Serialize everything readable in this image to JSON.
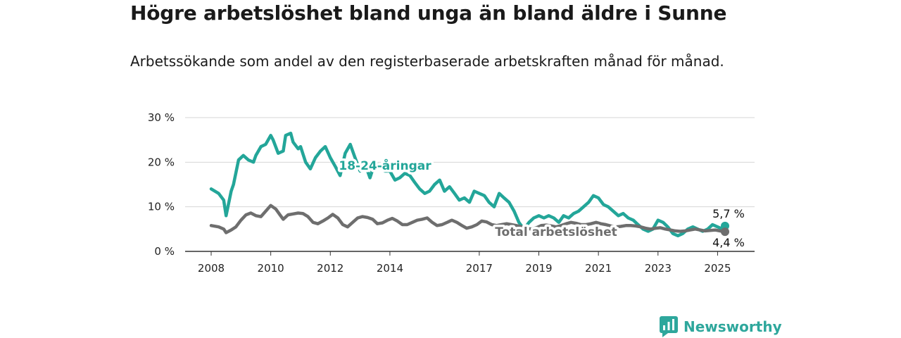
{
  "title": "Högre arbetslöshet bland unga än bland äldre i Sunne",
  "subtitle": "Arbetssökande som andel av den registerbaserade arbetskraften månad för månad.",
  "brand": {
    "name": "Newsworthy",
    "icon": "newsworthy-logo-icon",
    "color": "#2ea79c"
  },
  "chart_data": {
    "type": "line",
    "ylim": [
      0,
      30
    ],
    "xlim": [
      2008.0,
      2025.75
    ],
    "y_ticks": [
      {
        "value": 0,
        "label": "0 %"
      },
      {
        "value": 10,
        "label": "10 %"
      },
      {
        "value": 20,
        "label": "20 %"
      },
      {
        "value": 30,
        "label": "30 %"
      }
    ],
    "x_ticks": [
      {
        "value": 2008,
        "label": "2008"
      },
      {
        "value": 2010,
        "label": "2010"
      },
      {
        "value": 2012,
        "label": "2012"
      },
      {
        "value": 2014,
        "label": "2014"
      },
      {
        "value": 2017,
        "label": "2017"
      },
      {
        "value": 2019,
        "label": "2019"
      },
      {
        "value": 2021,
        "label": "2021"
      },
      {
        "value": 2023,
        "label": "2023"
      },
      {
        "value": 2025,
        "label": "2025"
      }
    ],
    "grid": "horizontal",
    "series": [
      {
        "name": "18-24-åringar",
        "color": "#23a699",
        "end_label": "5,7 %",
        "x": [
          2008.0,
          2008.25,
          2008.42,
          2008.5,
          2008.67,
          2008.75,
          2008.92,
          2009.08,
          2009.25,
          2009.42,
          2009.5,
          2009.67,
          2009.83,
          2010.0,
          2010.08,
          2010.25,
          2010.42,
          2010.5,
          2010.67,
          2010.75,
          2010.92,
          2011.0,
          2011.17,
          2011.33,
          2011.5,
          2011.67,
          2011.83,
          2012.0,
          2012.17,
          2012.33,
          2012.5,
          2012.67,
          2012.83,
          2013.0,
          2013.17,
          2013.33,
          2013.5,
          2013.67,
          2013.83,
          2014.0,
          2014.17,
          2014.33,
          2014.5,
          2014.67,
          2014.83,
          2015.0,
          2015.17,
          2015.33,
          2015.5,
          2015.67,
          2015.83,
          2016.0,
          2016.17,
          2016.33,
          2016.5,
          2016.67,
          2016.83,
          2017.0,
          2017.17,
          2017.33,
          2017.5,
          2017.67,
          2017.83,
          2018.0,
          2018.17,
          2018.33,
          2018.5,
          2018.67,
          2018.83,
          2019.0,
          2019.17,
          2019.33,
          2019.5,
          2019.67,
          2019.83,
          2020.0,
          2020.17,
          2020.33,
          2020.5,
          2020.67,
          2020.83,
          2021.0,
          2021.17,
          2021.33,
          2021.5,
          2021.67,
          2021.83,
          2022.0,
          2022.17,
          2022.33,
          2022.5,
          2022.67,
          2022.83,
          2023.0,
          2023.17,
          2023.33,
          2023.5,
          2023.67,
          2023.83,
          2024.0,
          2024.17,
          2024.33,
          2024.5,
          2024.67,
          2024.83,
          2025.0,
          2025.17,
          2025.25
        ],
        "y": [
          14.0,
          13.0,
          11.5,
          8.0,
          13.5,
          15.0,
          20.5,
          21.5,
          20.5,
          20.0,
          21.5,
          23.5,
          24.0,
          26.0,
          25.0,
          22.0,
          22.5,
          26.0,
          26.5,
          24.5,
          23.0,
          23.5,
          20.0,
          18.5,
          21.0,
          22.5,
          23.5,
          21.0,
          19.0,
          17.0,
          22.0,
          24.0,
          21.0,
          18.0,
          19.5,
          16.5,
          20.0,
          19.0,
          18.0,
          18.0,
          16.0,
          16.5,
          17.5,
          17.0,
          15.5,
          14.0,
          13.0,
          13.5,
          15.0,
          16.0,
          13.5,
          14.5,
          13.0,
          11.5,
          12.0,
          11.0,
          13.5,
          13.0,
          12.5,
          11.0,
          10.0,
          13.0,
          12.0,
          11.0,
          9.0,
          6.5,
          5.0,
          6.5,
          7.5,
          8.0,
          7.5,
          8.0,
          7.5,
          6.5,
          8.0,
          7.5,
          8.5,
          9.0,
          10.0,
          11.0,
          12.5,
          12.0,
          10.5,
          10.0,
          9.0,
          8.0,
          8.5,
          7.5,
          7.0,
          6.0,
          5.0,
          4.5,
          5.0,
          7.0,
          6.5,
          5.5,
          4.0,
          3.5,
          4.0,
          5.0,
          5.5,
          5.0,
          4.5,
          5.0,
          6.0,
          5.5,
          5.0,
          5.7
        ]
      },
      {
        "name": "Total arbetslöshet",
        "color": "#6e6e6e",
        "end_label": "4,4 %",
        "x": [
          2008.0,
          2008.25,
          2008.42,
          2008.5,
          2008.67,
          2008.83,
          2009.0,
          2009.17,
          2009.33,
          2009.5,
          2009.67,
          2009.83,
          2010.0,
          2010.17,
          2010.33,
          2010.42,
          2010.58,
          2010.75,
          2010.92,
          2011.08,
          2011.25,
          2011.42,
          2011.58,
          2011.75,
          2011.92,
          2012.08,
          2012.25,
          2012.42,
          2012.58,
          2012.75,
          2012.92,
          2013.08,
          2013.25,
          2013.42,
          2013.58,
          2013.75,
          2013.92,
          2014.08,
          2014.25,
          2014.42,
          2014.58,
          2014.75,
          2014.92,
          2015.08,
          2015.25,
          2015.42,
          2015.58,
          2015.75,
          2015.92,
          2016.08,
          2016.25,
          2016.42,
          2016.58,
          2016.75,
          2016.92,
          2017.08,
          2017.25,
          2017.42,
          2017.58,
          2017.75,
          2017.92,
          2018.08,
          2018.25,
          2018.42,
          2018.58,
          2018.75,
          2018.92,
          2019.08,
          2019.25,
          2019.42,
          2019.58,
          2019.75,
          2019.92,
          2020.08,
          2020.25,
          2020.42,
          2020.58,
          2020.75,
          2020.92,
          2021.08,
          2021.25,
          2021.42,
          2021.58,
          2021.75,
          2021.92,
          2022.08,
          2022.25,
          2022.42,
          2022.58,
          2022.75,
          2022.92,
          2023.08,
          2023.25,
          2023.42,
          2023.58,
          2023.75,
          2023.92,
          2024.08,
          2024.25,
          2024.42,
          2024.58,
          2024.75,
          2024.92,
          2025.08,
          2025.25
        ],
        "y": [
          5.8,
          5.5,
          5.0,
          4.2,
          4.8,
          5.5,
          7.0,
          8.2,
          8.6,
          8.0,
          7.8,
          9.0,
          10.3,
          9.5,
          8.0,
          7.2,
          8.2,
          8.4,
          8.6,
          8.5,
          7.8,
          6.5,
          6.2,
          6.8,
          7.5,
          8.3,
          7.5,
          6.0,
          5.5,
          6.5,
          7.5,
          7.8,
          7.6,
          7.2,
          6.2,
          6.4,
          7.0,
          7.4,
          6.8,
          6.0,
          6.0,
          6.5,
          7.0,
          7.2,
          7.5,
          6.5,
          5.8,
          6.0,
          6.5,
          7.0,
          6.5,
          5.8,
          5.2,
          5.5,
          6.0,
          6.8,
          6.6,
          6.0,
          5.8,
          6.0,
          6.2,
          6.0,
          5.8,
          5.5,
          5.2,
          5.0,
          5.3,
          5.8,
          5.9,
          5.7,
          5.5,
          5.8,
          6.2,
          6.5,
          6.3,
          6.0,
          6.0,
          6.2,
          6.5,
          6.2,
          6.0,
          5.7,
          5.5,
          5.6,
          5.8,
          5.8,
          5.7,
          5.5,
          5.2,
          5.0,
          5.2,
          5.3,
          5.0,
          4.8,
          4.6,
          4.5,
          4.6,
          4.8,
          5.0,
          4.8,
          4.6,
          4.7,
          4.8,
          4.6,
          4.4
        ]
      }
    ]
  }
}
